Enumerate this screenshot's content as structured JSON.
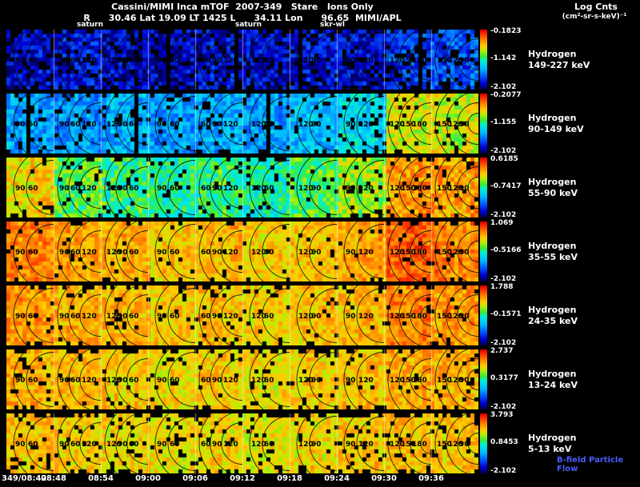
{
  "header": {
    "title": "Cassini/MIMI Inca mTOF  2007-349   Stare   Ions Only",
    "subtitle": "R      30.46 Lat 19.09 LT 1425 L      34.11 Lon      96.65  MIMI/APL",
    "legend_title": "Log Cnts",
    "legend_units": "(cm²-sr-s-keV)⁻¹"
  },
  "markers": [
    {
      "label": "saturn",
      "x": 96
    },
    {
      "label": "saturn",
      "x": 294
    },
    {
      "label": "skr-wl",
      "x": 400
    }
  ],
  "footer_note": "B-field Particle Flow",
  "colormap": [
    [
      0.0,
      "#00004d"
    ],
    [
      0.1,
      "#0000cc"
    ],
    [
      0.22,
      "#0055ff"
    ],
    [
      0.35,
      "#00bbff"
    ],
    [
      0.47,
      "#00eedd"
    ],
    [
      0.55,
      "#33ee44"
    ],
    [
      0.65,
      "#bbee00"
    ],
    [
      0.73,
      "#ffcc00"
    ],
    [
      0.82,
      "#ff8800"
    ],
    [
      0.92,
      "#ff3300"
    ],
    [
      1.0,
      "#cc0000"
    ]
  ],
  "contour_segments": [
    {
      "type": "arcs",
      "labels": [
        "90",
        "60"
      ]
    },
    {
      "type": "arcs",
      "labels": [
        "90",
        "60",
        "120"
      ]
    },
    {
      "type": "arcs",
      "labels": [
        "120",
        "90",
        "60"
      ]
    },
    {
      "type": "arcs",
      "labels": [
        "90",
        "60"
      ]
    },
    {
      "type": "arcs",
      "labels": [
        "60",
        "90",
        "120"
      ]
    },
    {
      "type": "arcs",
      "labels": [
        "120",
        "60"
      ]
    },
    {
      "type": "arcs",
      "labels": [
        "120",
        "90"
      ]
    },
    {
      "type": "arcs",
      "labels": [
        "90",
        "120"
      ]
    },
    {
      "type": "nested",
      "labels": [
        "120",
        "150",
        "180"
      ]
    },
    {
      "type": "nested",
      "labels": [
        "150",
        "120",
        "90"
      ]
    }
  ],
  "chart_data": {
    "type": "heatmap",
    "title": "Cassini/MIMI Inca mTOF 2007-349 Stare Ions Only",
    "instrument": "MIMI/APL",
    "value_label": "Log Cnts (cm²-sr-s-keV)⁻¹",
    "x_ticks": [
      "349/08:42",
      "08:48",
      "08:54",
      "09:00",
      "09:06",
      "09:12",
      "09:18",
      "09:24",
      "09:30",
      "09:36"
    ],
    "panels": [
      {
        "species": "Hydrogen",
        "energy": "149-227 keV",
        "scale": {
          "max": "-0.1823",
          "mid": "-1.142",
          "min": "-2.102"
        },
        "profile": [
          0.1,
          0.13,
          0.1,
          0.08,
          0.12,
          0.1,
          0.13,
          0.11,
          0.18,
          0.22
        ],
        "noise": 0.1,
        "black": 0.16,
        "edge": 0.2,
        "col_black": 0.06
      },
      {
        "species": "Hydrogen",
        "energy": "90-149 keV",
        "scale": {
          "max": "-0.2077",
          "mid": "-1.155",
          "min": "-2.102"
        },
        "profile": [
          0.32,
          0.3,
          0.34,
          0.3,
          0.33,
          0.31,
          0.36,
          0.42,
          0.68,
          0.66
        ],
        "noise": 0.1,
        "black": 0.1,
        "edge": 0.12,
        "col_black": 0.02
      },
      {
        "species": "Hydrogen",
        "energy": "55-90 keV",
        "scale": {
          "max": "0.6185",
          "mid": "-0.7417",
          "min": "-2.102"
        },
        "profile": [
          0.72,
          0.58,
          0.52,
          0.5,
          0.54,
          0.48,
          0.56,
          0.62,
          0.8,
          0.78
        ],
        "noise": 0.1,
        "black": 0.07,
        "edge": 0.1,
        "col_black": 0.0
      },
      {
        "species": "Hydrogen",
        "energy": "35-55 keV",
        "scale": {
          "max": "1.069",
          "mid": "-0.5166",
          "min": "-2.102"
        },
        "profile": [
          0.82,
          0.78,
          0.76,
          0.73,
          0.76,
          0.72,
          0.74,
          0.78,
          0.86,
          0.83
        ],
        "noise": 0.08,
        "black": 0.05,
        "edge": 0.08,
        "col_black": 0.0
      },
      {
        "species": "Hydrogen",
        "energy": "24-35 keV",
        "scale": {
          "max": "1.788",
          "mid": "-0.1571",
          "min": "-2.102"
        },
        "profile": [
          0.8,
          0.77,
          0.75,
          0.73,
          0.75,
          0.72,
          0.74,
          0.76,
          0.82,
          0.8
        ],
        "noise": 0.08,
        "black": 0.06,
        "edge": 0.15,
        "col_black": 0.0
      },
      {
        "species": "Hydrogen",
        "energy": "13-24 keV",
        "scale": {
          "max": "2.737",
          "mid": "0.3177",
          "min": "-2.102"
        },
        "profile": [
          0.76,
          0.75,
          0.73,
          0.71,
          0.73,
          0.71,
          0.73,
          0.75,
          0.78,
          0.76
        ],
        "noise": 0.08,
        "black": 0.07,
        "edge": 0.2,
        "col_black": 0.0
      },
      {
        "species": "Hydrogen",
        "energy": "5-13 keV",
        "scale": {
          "max": "3.793",
          "mid": "0.8453",
          "min": "-2.102"
        },
        "profile": [
          0.74,
          0.73,
          0.71,
          0.7,
          0.71,
          0.7,
          0.71,
          0.73,
          0.75,
          0.74
        ],
        "noise": 0.08,
        "black": 0.1,
        "edge": 0.45,
        "col_black": 0.0
      }
    ]
  }
}
